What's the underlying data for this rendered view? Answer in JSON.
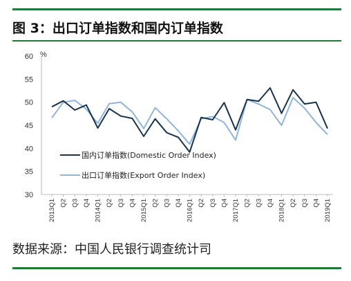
{
  "header": {
    "title": "图 3：出口订单指数和国内订单指数"
  },
  "footer": {
    "source": "数据来源：中国人民银行调查统计司"
  },
  "chart_data": {
    "type": "line",
    "unit_label": "%",
    "ylim": [
      30,
      60
    ],
    "yticks": [
      30,
      35,
      40,
      45,
      50,
      55,
      60
    ],
    "grid": false,
    "legend_position": "lower-center",
    "x_tick_labels": [
      "2013Q1",
      "Q2",
      "Q3",
      "Q4",
      "2014Q1",
      "Q2",
      "Q3",
      "Q4",
      "2015Q1",
      "Q2",
      "Q3",
      "Q4",
      "2016Q1",
      "Q2",
      "Q3",
      "Q4",
      "2017Q1",
      "Q2",
      "Q3",
      "Q4",
      "2018Q1",
      "Q2",
      "Q3",
      "Q4",
      "2019Q1"
    ],
    "series": [
      {
        "name": "国内订单指数(Domestic Order Index)",
        "color": "#17324d",
        "values": [
          49.0,
          50.3,
          48.3,
          49.4,
          44.4,
          48.6,
          47.0,
          46.5,
          42.6,
          46.4,
          43.4,
          42.4,
          39.2,
          46.7,
          46.2,
          49.9,
          44.0,
          50.6,
          50.2,
          53.1,
          47.6,
          52.7,
          49.6,
          50.0,
          44.3
        ]
      },
      {
        "name": "出口订单指数(Export Order Index)",
        "color": "#8fb4dc",
        "values": [
          46.6,
          50.0,
          50.4,
          48.5,
          45.4,
          49.7,
          50.0,
          47.9,
          44.3,
          48.8,
          46.4,
          43.8,
          40.9,
          46.4,
          46.9,
          45.6,
          41.8,
          50.6,
          49.6,
          48.4,
          45.0,
          51.0,
          48.7,
          45.6,
          43.0
        ]
      }
    ]
  }
}
